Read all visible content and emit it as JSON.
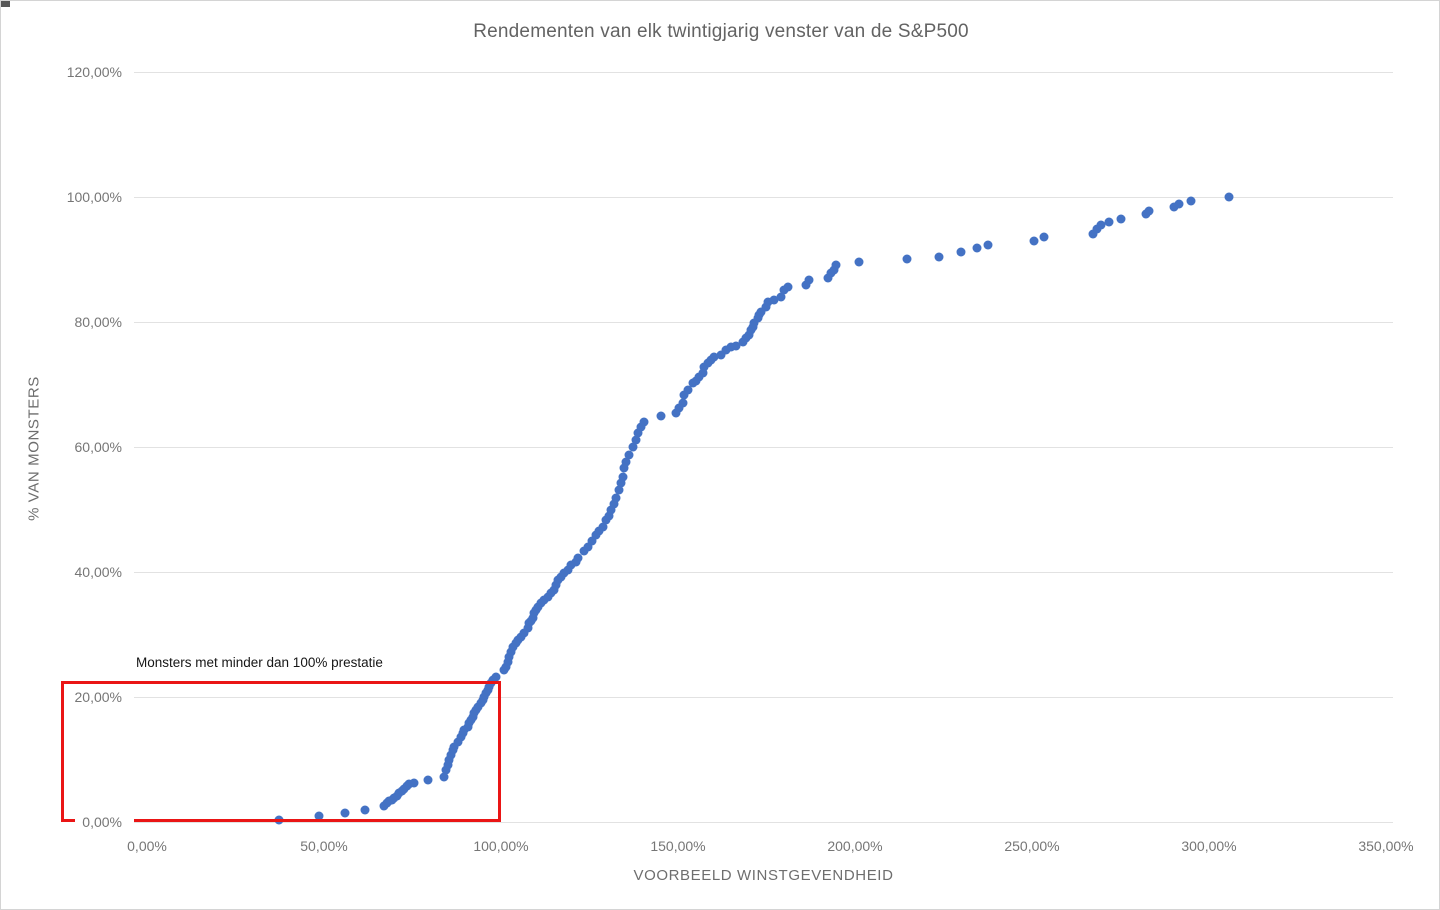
{
  "chart": {
    "title": "Rendementen van elk twintigjarig venster van de S&P500",
    "x_axis": {
      "title": "VOORBEELD WINSTGEVENDHEID",
      "ticks": [
        {
          "label": "0,00%",
          "value": 0
        },
        {
          "label": "50,00%",
          "value": 50
        },
        {
          "label": "100,00%",
          "value": 100
        },
        {
          "label": "150,00%",
          "value": 150
        },
        {
          "label": "200,00%",
          "value": 200
        },
        {
          "label": "250,00%",
          "value": 250
        },
        {
          "label": "300,00%",
          "value": 300
        },
        {
          "label": "350,00%",
          "value": 350
        }
      ],
      "min": 0,
      "max": 350
    },
    "y_axis": {
      "title": "% VAN MONSTERS",
      "ticks": [
        {
          "label": "120,00%",
          "value": 120
        },
        {
          "label": "100,00%",
          "value": 100
        },
        {
          "label": "80,00%",
          "value": 80
        },
        {
          "label": "60,00%",
          "value": 60
        },
        {
          "label": "40,00%",
          "value": 40
        },
        {
          "label": "20,00%",
          "value": 20
        },
        {
          "label": "0,00%",
          "value": 0
        }
      ],
      "min": 0,
      "max": 120
    },
    "annotation": {
      "label": "Monsters met minder dan 100% prestatie",
      "box_x_max": 100,
      "box_y_max": 22.6,
      "box_y_min": 0
    }
  },
  "chart_data": {
    "type": "scatter",
    "title": "Rendementen van elk twintigjarig venster van de S&P500",
    "xlabel": "VOORBEELD WINSTGEVENDHEID",
    "ylabel": "% VAN MONSTERS",
    "xlim": [
      0,
      350
    ],
    "ylim": [
      0,
      120
    ],
    "grid": "horizontal",
    "legend": "none",
    "series": [
      {
        "name": "Cumulatief % van monsters per winstgevendheid",
        "points": [
          [
            37.3,
            0.4
          ],
          [
            48.6,
            0.9
          ],
          [
            55.9,
            1.5
          ],
          [
            61.6,
            2.0
          ],
          [
            66.9,
            2.6
          ],
          [
            67.8,
            3.0
          ],
          [
            68.4,
            3.3
          ],
          [
            69.2,
            3.6
          ],
          [
            69.8,
            3.9
          ],
          [
            70.6,
            4.2
          ],
          [
            71.2,
            4.6
          ],
          [
            72.0,
            4.9
          ],
          [
            72.6,
            5.3
          ],
          [
            73.4,
            5.7
          ],
          [
            74.0,
            6.1
          ],
          [
            75.4,
            6.3
          ],
          [
            79.4,
            6.7
          ],
          [
            83.9,
            7.2
          ],
          [
            84.5,
            8.3
          ],
          [
            85.0,
            9.1
          ],
          [
            85.3,
            9.9
          ],
          [
            85.9,
            10.7
          ],
          [
            86.4,
            11.5
          ],
          [
            86.7,
            12.0
          ],
          [
            87.9,
            12.8
          ],
          [
            88.7,
            13.6
          ],
          [
            89.3,
            14.2
          ],
          [
            89.5,
            14.7
          ],
          [
            90.7,
            15.2
          ],
          [
            91.0,
            15.8
          ],
          [
            91.5,
            16.3
          ],
          [
            92.1,
            16.8
          ],
          [
            92.4,
            17.4
          ],
          [
            92.9,
            17.9
          ],
          [
            93.5,
            18.4
          ],
          [
            94.4,
            19.0
          ],
          [
            94.9,
            19.5
          ],
          [
            95.2,
            20.0
          ],
          [
            95.8,
            20.6
          ],
          [
            96.3,
            21.1
          ],
          [
            96.6,
            21.6
          ],
          [
            97.2,
            22.2
          ],
          [
            97.7,
            22.7
          ],
          [
            98.6,
            23.2
          ],
          [
            100.8,
            24.3
          ],
          [
            101.4,
            24.8
          ],
          [
            102.0,
            25.6
          ],
          [
            102.3,
            26.4
          ],
          [
            102.8,
            27.2
          ],
          [
            103.4,
            28.0
          ],
          [
            104.2,
            28.6
          ],
          [
            104.8,
            29.1
          ],
          [
            105.6,
            29.6
          ],
          [
            106.5,
            30.2
          ],
          [
            107.6,
            31.0
          ],
          [
            107.9,
            31.8
          ],
          [
            108.5,
            32.1
          ],
          [
            109.0,
            32.6
          ],
          [
            109.3,
            33.4
          ],
          [
            109.9,
            33.9
          ],
          [
            110.5,
            34.4
          ],
          [
            111.3,
            35.0
          ],
          [
            112.1,
            35.5
          ],
          [
            113.3,
            36.0
          ],
          [
            114.1,
            36.6
          ],
          [
            115.0,
            37.1
          ],
          [
            115.5,
            37.9
          ],
          [
            116.1,
            38.7
          ],
          [
            117.0,
            39.2
          ],
          [
            117.8,
            39.8
          ],
          [
            118.9,
            40.3
          ],
          [
            119.8,
            41.1
          ],
          [
            121.2,
            41.6
          ],
          [
            121.8,
            42.2
          ],
          [
            123.4,
            43.4
          ],
          [
            124.6,
            44.0
          ],
          [
            125.7,
            45.0
          ],
          [
            126.8,
            45.9
          ],
          [
            127.8,
            46.6
          ],
          [
            128.8,
            47.2
          ],
          [
            129.7,
            48.3
          ],
          [
            130.4,
            49.0
          ],
          [
            131.1,
            49.9
          ],
          [
            131.8,
            50.9
          ],
          [
            132.5,
            51.8
          ],
          [
            133.3,
            53.1
          ],
          [
            133.9,
            54.2
          ],
          [
            134.5,
            55.2
          ],
          [
            134.7,
            56.6
          ],
          [
            135.3,
            57.6
          ],
          [
            136.2,
            58.7
          ],
          [
            137.3,
            60.0
          ],
          [
            138.1,
            61.1
          ],
          [
            138.7,
            62.2
          ],
          [
            139.5,
            63.2
          ],
          [
            140.4,
            64.0
          ],
          [
            145.2,
            65.0
          ],
          [
            149.4,
            65.4
          ],
          [
            150.3,
            66.2
          ],
          [
            151.4,
            67.0
          ],
          [
            151.7,
            68.3
          ],
          [
            152.8,
            69.1
          ],
          [
            154.2,
            70.2
          ],
          [
            155.1,
            70.6
          ],
          [
            155.9,
            71.2
          ],
          [
            157.1,
            71.8
          ],
          [
            157.3,
            72.8
          ],
          [
            158.5,
            73.4
          ],
          [
            159.3,
            73.9
          ],
          [
            160.2,
            74.4
          ],
          [
            162.1,
            74.7
          ],
          [
            163.6,
            75.5
          ],
          [
            165.0,
            76.0
          ],
          [
            166.4,
            76.1
          ],
          [
            168.4,
            76.8
          ],
          [
            169.2,
            77.4
          ],
          [
            170.1,
            77.9
          ],
          [
            170.6,
            78.7
          ],
          [
            171.2,
            79.2
          ],
          [
            171.5,
            79.8
          ],
          [
            172.6,
            80.6
          ],
          [
            172.9,
            81.1
          ],
          [
            173.4,
            81.6
          ],
          [
            174.9,
            82.4
          ],
          [
            175.4,
            83.2
          ],
          [
            177.1,
            83.5
          ],
          [
            179.1,
            84.0
          ],
          [
            179.9,
            85.1
          ],
          [
            181.1,
            85.6
          ],
          [
            186.2,
            85.9
          ],
          [
            187.0,
            86.7
          ],
          [
            192.4,
            87.0
          ],
          [
            193.2,
            87.8
          ],
          [
            194.1,
            88.3
          ],
          [
            194.6,
            89.1
          ],
          [
            201.1,
            89.6
          ],
          [
            214.7,
            90.1
          ],
          [
            223.7,
            90.4
          ],
          [
            229.9,
            91.2
          ],
          [
            234.5,
            91.8
          ],
          [
            237.6,
            92.3
          ],
          [
            250.6,
            93.0
          ],
          [
            253.4,
            93.6
          ],
          [
            267.2,
            94.1
          ],
          [
            268.4,
            94.9
          ],
          [
            269.5,
            95.5
          ],
          [
            271.8,
            96.0
          ],
          [
            275.1,
            96.5
          ],
          [
            282.2,
            97.3
          ],
          [
            283.1,
            97.8
          ],
          [
            290.1,
            98.4
          ],
          [
            291.5,
            98.9
          ],
          [
            294.9,
            99.4
          ],
          [
            305.6,
            100.0
          ]
        ]
      }
    ]
  },
  "colors": {
    "dot": "#4472c4",
    "highlight_red": "#ea1515",
    "gridline": "#e2e2e2",
    "tick_text": "#767676",
    "title_text": "#636363",
    "axis_title_text": "#6e6e6e",
    "annotation_text": "#161616"
  }
}
